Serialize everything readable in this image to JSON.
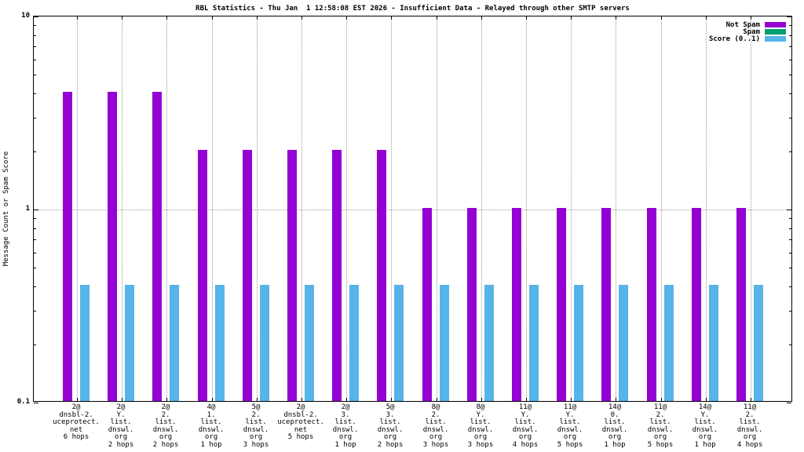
{
  "chart_data": {
    "type": "bar",
    "title": "RBL Statistics - Thu Jan  1 12:58:08 EST 2026 - Insufficient Data - Relayed through other SMTP servers",
    "ylabel": "Message Count or Spam Score",
    "yscale": "log",
    "ylim": [
      0.1,
      10
    ],
    "yticks": [
      {
        "value": 10,
        "label": "10"
      },
      {
        "value": 1,
        "label": "1"
      },
      {
        "value": 0.1,
        "label": "0.1"
      }
    ],
    "grid": {
      "vertical_gridlines": true,
      "horizontal_gridline_at": 1,
      "style": "dotted"
    },
    "legend_position": "top-right-inside",
    "categories": [
      [
        "2@",
        "dnsbl-2.",
        "uceprotect.",
        "net",
        "6 hops"
      ],
      [
        "2@",
        "Y.",
        "list.",
        "dnswl.",
        "org",
        "2 hops"
      ],
      [
        "2@",
        "2.",
        "list.",
        "dnswl.",
        "org",
        "2 hops"
      ],
      [
        "4@",
        "1.",
        "list.",
        "dnswl.",
        "org",
        "1 hop"
      ],
      [
        "5@",
        "2.",
        "list.",
        "dnswl.",
        "org",
        "3 hops"
      ],
      [
        "2@",
        "dnsbl-2.",
        "uceprotect.",
        "net",
        "5 hops"
      ],
      [
        "2@",
        "3.",
        "list.",
        "dnswl.",
        "org",
        "1 hop"
      ],
      [
        "5@",
        "3.",
        "list.",
        "dnswl.",
        "org",
        "2 hops"
      ],
      [
        "8@",
        "2.",
        "list.",
        "dnswl.",
        "org",
        "3 hops"
      ],
      [
        "8@",
        "Y.",
        "list.",
        "dnswl.",
        "org",
        "3 hops"
      ],
      [
        "11@",
        "Y.",
        "list.",
        "dnswl.",
        "org",
        "4 hops"
      ],
      [
        "11@",
        "Y.",
        "list.",
        "dnswl.",
        "org",
        "5 hops"
      ],
      [
        "14@",
        "0.",
        "list.",
        "dnswl.",
        "org",
        "1 hop"
      ],
      [
        "11@",
        "2.",
        "list.",
        "dnswl.",
        "org",
        "5 hops"
      ],
      [
        "14@",
        "Y.",
        "list.",
        "dnswl.",
        "org",
        "1 hop"
      ],
      [
        "11@",
        "2.",
        "list.",
        "dnswl.",
        "org",
        "4 hops"
      ]
    ],
    "series": [
      {
        "name": "Not Spam",
        "color": "#9400d3",
        "values": [
          4,
          4,
          4,
          2,
          2,
          2,
          2,
          2,
          1,
          1,
          1,
          1,
          1,
          1,
          1,
          1
        ]
      },
      {
        "name": "Spam",
        "color": "#009e73",
        "values": [
          0,
          0,
          0,
          0,
          0,
          0,
          0,
          0,
          0,
          0,
          0,
          0,
          0,
          0,
          0,
          0
        ]
      },
      {
        "name": "Score (0..1)",
        "color": "#56b4e9",
        "values": [
          0.4,
          0.4,
          0.4,
          0.4,
          0.4,
          0.4,
          0.4,
          0.4,
          0.4,
          0.4,
          0.4,
          0.4,
          0.4,
          0.4,
          0.4,
          0.4
        ]
      }
    ]
  }
}
